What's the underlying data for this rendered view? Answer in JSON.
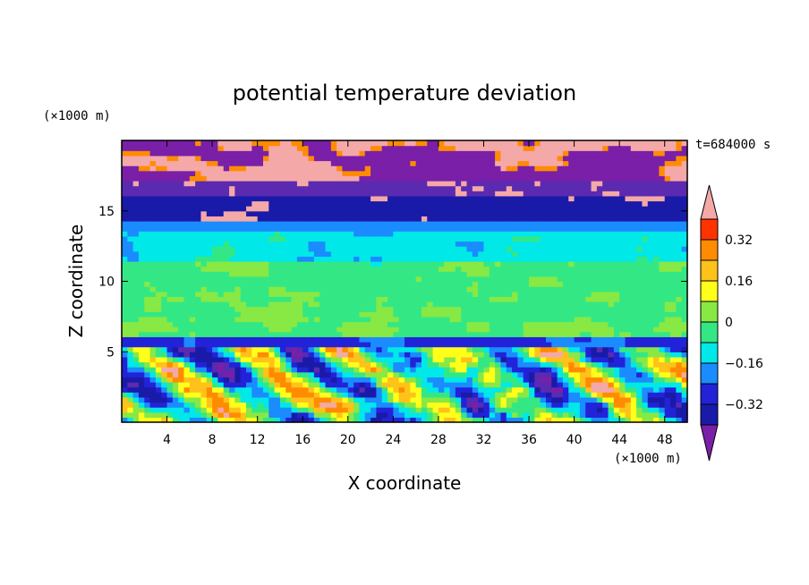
{
  "chart_data": {
    "type": "heatmap",
    "title": "potential temperature deviation",
    "xlabel": "X coordinate",
    "ylabel": "Z coordinate",
    "x_unit": "(×1000 m)",
    "y_unit": "(×1000 m)",
    "time_label": "t=684000 s",
    "xlim": [
      0,
      50
    ],
    "ylim": [
      0,
      20
    ],
    "x_ticks": [
      "4",
      "8",
      "12",
      "16",
      "20",
      "24",
      "28",
      "32",
      "36",
      "40",
      "44",
      "48"
    ],
    "y_ticks": [
      "5",
      "10",
      "15"
    ],
    "colorbar_labels": [
      "0.32",
      "0.16",
      "0",
      "−0.16",
      "−0.32"
    ],
    "colorbar_levels": [
      -0.4,
      -0.32,
      -0.24,
      -0.16,
      -0.08,
      0,
      0.08,
      0.16,
      0.24,
      0.32,
      0.4
    ],
    "colors": [
      "#7a1fa8",
      "#5b2ab0",
      "#1a1aa8",
      "#2222d8",
      "#1a8cff",
      "#00e8e8",
      "#33e884",
      "#88e844",
      "#ffff1a",
      "#ffc21a",
      "#ff8c00",
      "#ff3300",
      "#f5a8a8"
    ],
    "layers": [
      {
        "z_range": [
          17,
          20
        ],
        "description_value": "mixed",
        "dominant_level": "-0.4/0.4"
      },
      {
        "z_range": [
          14.5,
          17
        ],
        "dominant_level": -0.36
      },
      {
        "z_range": [
          12,
          14.5
        ],
        "dominant_level": 0.0
      },
      {
        "z_range": [
          6,
          12
        ],
        "dominant_level": 0.08
      },
      {
        "z_range": [
          5,
          6
        ],
        "dominant_level": -0.16
      },
      {
        "z_range": [
          0,
          5
        ],
        "dominant_level": "mixed"
      }
    ]
  }
}
